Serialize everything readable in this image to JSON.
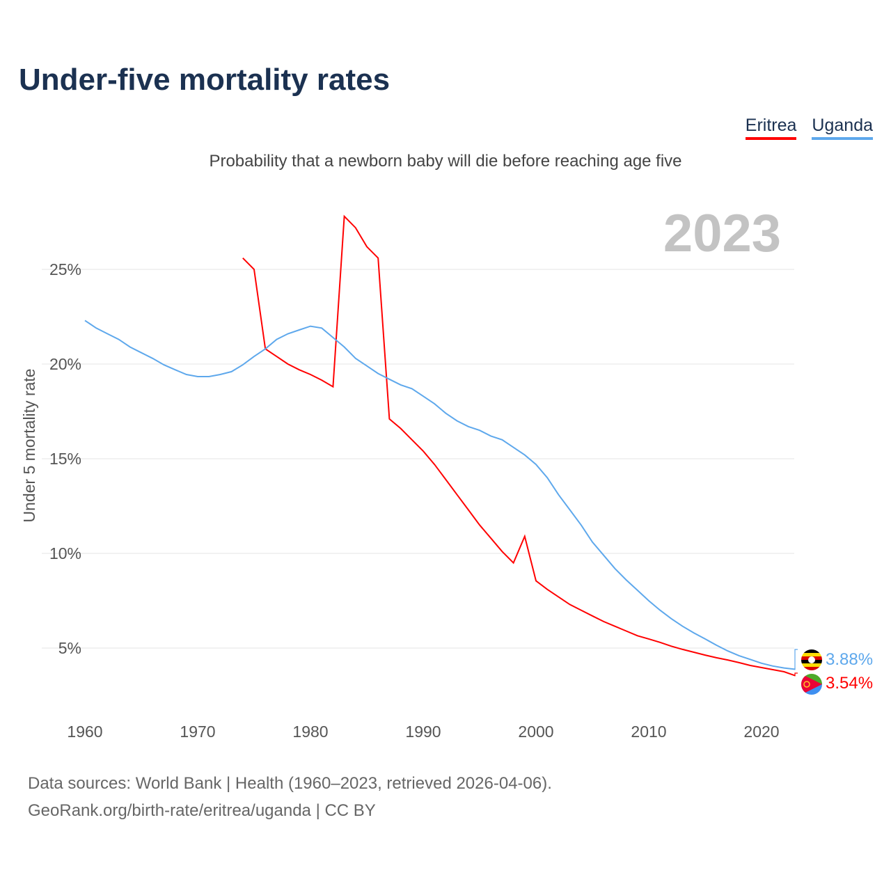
{
  "title": "Under-five mortality rates",
  "subtitle": "Probability that a newborn baby will die before reaching age five",
  "year_label": "2023",
  "footer": {
    "line1": "Data sources: World Bank | Health (1960–2023, retrieved 2026-04-06).",
    "line2": "GeoRank.org/birth-rate/eritrea/uganda | CC BY"
  },
  "chart_data": {
    "type": "line",
    "title": "Under-five mortality rates",
    "ylabel": "Under 5 mortality rate",
    "xlabel": "",
    "xlim": [
      1960,
      2023
    ],
    "ylim": [
      0,
      28
    ],
    "x_ticks": [
      1960,
      1970,
      1980,
      1990,
      2000,
      2010,
      2020
    ],
    "y_ticks": [
      {
        "v": 5,
        "label": "5%"
      },
      {
        "v": 10,
        "label": "10%"
      },
      {
        "v": 15,
        "label": "15%"
      },
      {
        "v": 20,
        "label": "20%"
      },
      {
        "v": 25,
        "label": "25%"
      }
    ],
    "grid": true,
    "legend": "top-right",
    "series": [
      {
        "name": "Eritrea",
        "color": "#ff0000",
        "end_label": "3.54%",
        "start": 1974,
        "values": [
          25.6,
          25.0,
          20.8,
          20.4,
          20.0,
          19.7,
          19.45,
          19.15,
          18.8,
          27.8,
          27.2,
          26.2,
          25.6,
          17.1,
          16.6,
          16.0,
          15.4,
          14.7,
          13.9,
          13.1,
          12.3,
          11.5,
          10.8,
          10.1,
          9.5,
          10.9,
          8.55,
          8.1,
          7.7,
          7.3,
          7.0,
          6.7,
          6.4,
          6.15,
          5.9,
          5.65,
          5.48,
          5.3,
          5.1,
          4.93,
          4.78,
          4.63,
          4.49,
          4.37,
          4.23,
          4.08,
          3.97,
          3.86,
          3.75,
          3.54
        ]
      },
      {
        "name": "Uganda",
        "color": "#5ea8ec",
        "end_label": "3.88%",
        "start": 1960,
        "values": [
          22.3,
          21.9,
          21.6,
          21.3,
          20.9,
          20.6,
          20.3,
          19.96,
          19.7,
          19.45,
          19.34,
          19.34,
          19.45,
          19.6,
          19.96,
          20.4,
          20.8,
          21.3,
          21.6,
          21.8,
          22.0,
          21.9,
          21.4,
          20.9,
          20.3,
          19.9,
          19.5,
          19.2,
          18.9,
          18.7,
          18.3,
          17.9,
          17.4,
          17.0,
          16.7,
          16.5,
          16.2,
          16.0,
          15.6,
          15.2,
          14.7,
          14.0,
          13.1,
          12.3,
          11.5,
          10.6,
          9.9,
          9.2,
          8.6,
          8.05,
          7.5,
          7.0,
          6.55,
          6.15,
          5.8,
          5.48,
          5.15,
          4.85,
          4.6,
          4.4,
          4.2,
          4.05,
          3.95,
          3.88
        ]
      }
    ]
  }
}
